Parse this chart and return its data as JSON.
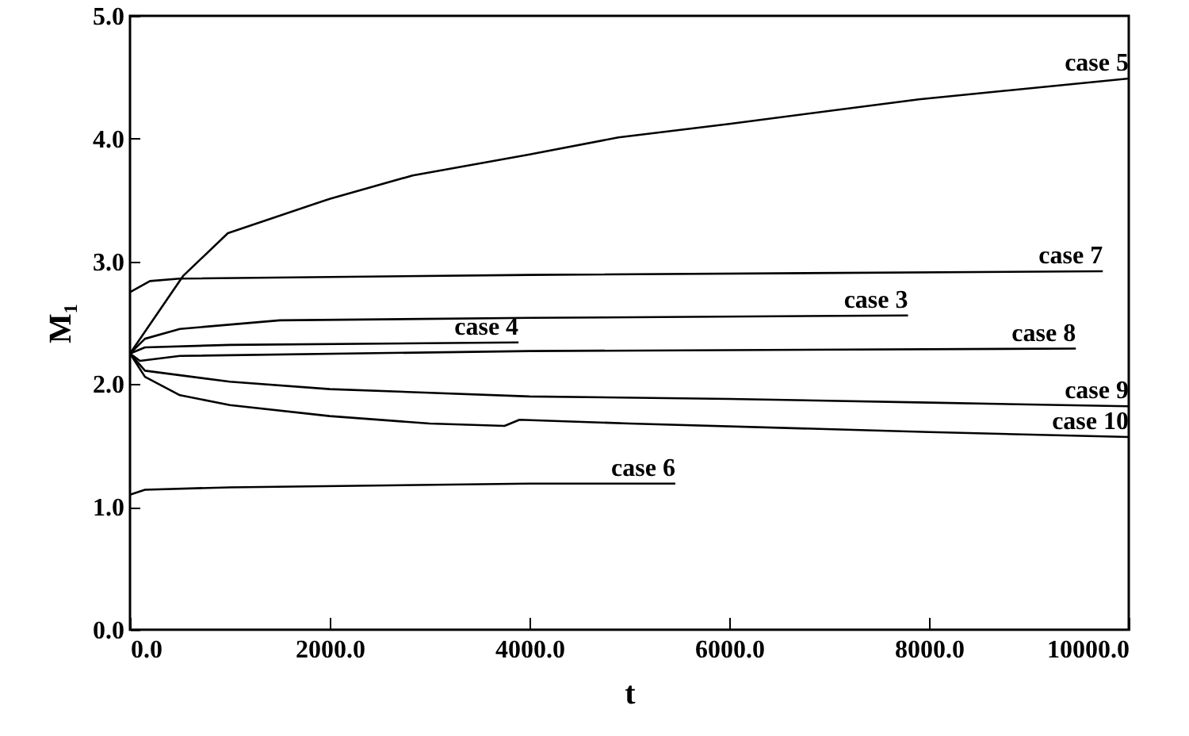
{
  "chart_data": {
    "type": "line",
    "xlabel": "t",
    "ylabel": "M₁",
    "grid": false,
    "marker": "none",
    "line_style": "solid",
    "xlim": [
      0,
      10000
    ],
    "ylim": [
      0,
      5
    ],
    "xticks": [
      {
        "value": 0,
        "label": "0.0"
      },
      {
        "value": 2000,
        "label": "2000.0"
      },
      {
        "value": 4000,
        "label": "4000.0"
      },
      {
        "value": 6000,
        "label": "6000.0"
      },
      {
        "value": 8000,
        "label": "8000.0"
      },
      {
        "value": 10000,
        "label": "10000.0"
      }
    ],
    "yticks": [
      {
        "value": 0,
        "label": "0.0"
      },
      {
        "value": 1,
        "label": "1.0"
      },
      {
        "value": 2,
        "label": "2.0"
      },
      {
        "value": 3,
        "label": "3.0"
      },
      {
        "value": 4,
        "label": "4.0"
      },
      {
        "value": 5,
        "label": "5.0"
      }
    ],
    "series": [
      {
        "name": "case 5",
        "color": "#000000",
        "x": [
          0,
          530,
          980,
          2000,
          2830,
          3990,
          4890,
          6000,
          7900,
          10000
        ],
        "values": [
          2.25,
          2.88,
          3.23,
          3.51,
          3.7,
          3.87,
          4.01,
          4.12,
          4.32,
          4.49
        ]
      },
      {
        "name": "case 7",
        "color": "#000000",
        "x": [
          0,
          200,
          500,
          4000,
          9740
        ],
        "values": [
          2.75,
          2.84,
          2.86,
          2.89,
          2.92
        ]
      },
      {
        "name": "case 3",
        "color": "#000000",
        "x": [
          0,
          150,
          500,
          1500,
          4000,
          7790
        ],
        "values": [
          2.25,
          2.37,
          2.45,
          2.52,
          2.54,
          2.56
        ]
      },
      {
        "name": "case 4",
        "color": "#000000",
        "x": [
          0,
          150,
          1000,
          3890
        ],
        "values": [
          2.25,
          2.3,
          2.32,
          2.34
        ]
      },
      {
        "name": "case 8",
        "color": "#000000",
        "x": [
          0,
          100,
          500,
          4000,
          9470
        ],
        "values": [
          2.25,
          2.19,
          2.23,
          2.27,
          2.29
        ]
      },
      {
        "name": "case 9",
        "color": "#000000",
        "x": [
          0,
          150,
          1000,
          2000,
          4000,
          6000,
          8000,
          10000
        ],
        "values": [
          2.25,
          2.11,
          2.02,
          1.96,
          1.9,
          1.88,
          1.85,
          1.82
        ]
      },
      {
        "name": "case 10",
        "color": "#000000",
        "x": [
          0,
          150,
          500,
          1000,
          2000,
          3000,
          3750,
          3900,
          5000,
          8000,
          10000
        ],
        "values": [
          2.25,
          2.06,
          1.91,
          1.83,
          1.74,
          1.68,
          1.66,
          1.71,
          1.68,
          1.61,
          1.57
        ]
      },
      {
        "name": "case 6",
        "color": "#000000",
        "x": [
          0,
          150,
          1000,
          4000,
          5460
        ],
        "values": [
          1.1,
          1.14,
          1.16,
          1.19,
          1.19
        ]
      }
    ]
  }
}
